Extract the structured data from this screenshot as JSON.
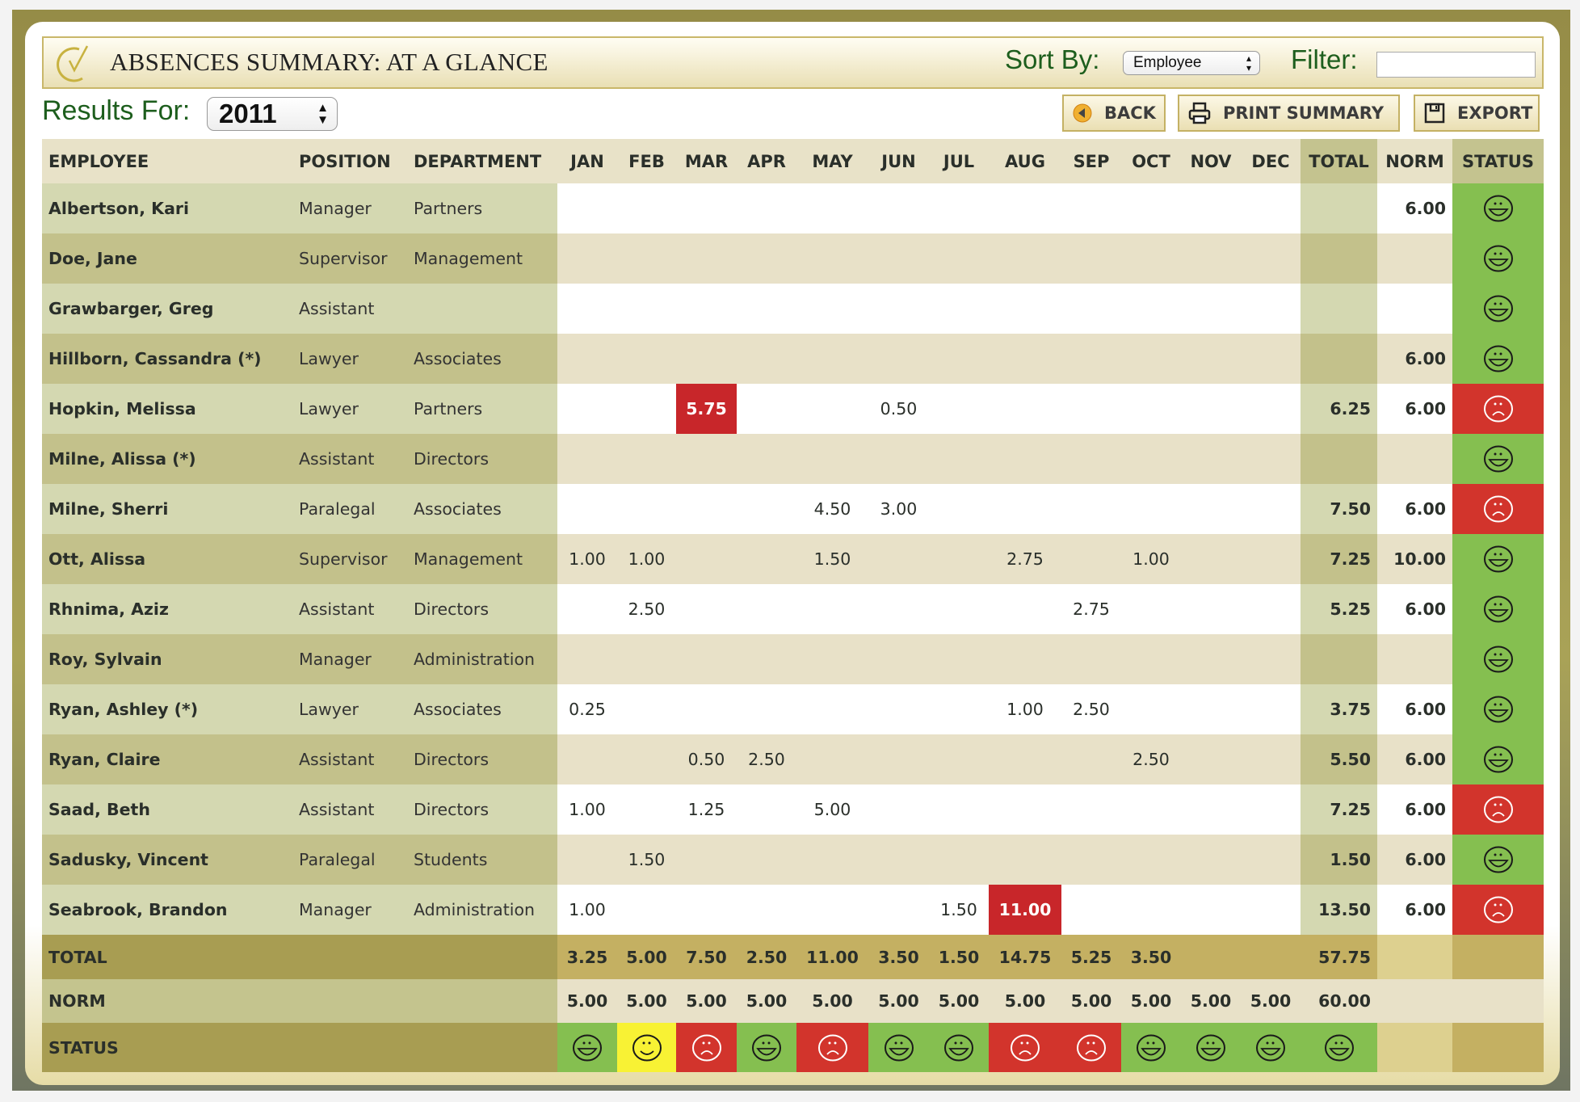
{
  "title": "ABSENCES SUMMARY: AT A GLANCE",
  "sort": {
    "label": "Sort By:",
    "value": "Employee"
  },
  "filter": {
    "label": "Filter:",
    "value": ""
  },
  "results": {
    "label": "Results For:",
    "year": "2011"
  },
  "buttons": {
    "back": "BACK",
    "print": "PRINT SUMMARY",
    "export": "EXPORT"
  },
  "colors": {
    "good": "#85bf50",
    "bad": "#d2342c",
    "neutral": "#f8f234",
    "alert": "#c8262a"
  },
  "columns": [
    "EMPLOYEE",
    "POSITION",
    "DEPARTMENT",
    "JAN",
    "FEB",
    "MAR",
    "APR",
    "MAY",
    "JUN",
    "JUL",
    "AUG",
    "SEP",
    "OCT",
    "NOV",
    "DEC",
    "TOTAL",
    "NORM",
    "STATUS"
  ],
  "rows": [
    {
      "employee": "Albertson, Kari",
      "position": "Manager",
      "department": "Partners",
      "months": [
        "",
        "",
        "",
        "",
        "",
        "",
        "",
        "",
        "",
        "",
        "",
        ""
      ],
      "alerts": [],
      "total": "",
      "norm": "6.00",
      "status": "good"
    },
    {
      "employee": "Doe, Jane",
      "position": "Supervisor",
      "department": "Management",
      "months": [
        "",
        "",
        "",
        "",
        "",
        "",
        "",
        "",
        "",
        "",
        "",
        ""
      ],
      "alerts": [],
      "total": "",
      "norm": "",
      "status": "good"
    },
    {
      "employee": "Grawbarger, Greg",
      "position": "Assistant",
      "department": "",
      "months": [
        "",
        "",
        "",
        "",
        "",
        "",
        "",
        "",
        "",
        "",
        "",
        ""
      ],
      "alerts": [],
      "total": "",
      "norm": "",
      "status": "good"
    },
    {
      "employee": "Hillborn, Cassandra (*)",
      "position": "Lawyer",
      "department": "Associates",
      "months": [
        "",
        "",
        "",
        "",
        "",
        "",
        "",
        "",
        "",
        "",
        "",
        ""
      ],
      "alerts": [],
      "total": "",
      "norm": "6.00",
      "status": "good"
    },
    {
      "employee": "Hopkin, Melissa",
      "position": "Lawyer",
      "department": "Partners",
      "months": [
        "",
        "",
        "5.75",
        "",
        "",
        "0.50",
        "",
        "",
        "",
        "",
        "",
        ""
      ],
      "alerts": [
        2
      ],
      "total": "6.25",
      "norm": "6.00",
      "status": "bad"
    },
    {
      "employee": "Milne, Alissa (*)",
      "position": "Assistant",
      "department": "Directors",
      "months": [
        "",
        "",
        "",
        "",
        "",
        "",
        "",
        "",
        "",
        "",
        "",
        ""
      ],
      "alerts": [],
      "total": "",
      "norm": "",
      "status": "good"
    },
    {
      "employee": "Milne, Sherri",
      "position": "Paralegal",
      "department": "Associates",
      "months": [
        "",
        "",
        "",
        "",
        "4.50",
        "3.00",
        "",
        "",
        "",
        "",
        "",
        ""
      ],
      "alerts": [],
      "total": "7.50",
      "norm": "6.00",
      "status": "bad"
    },
    {
      "employee": "Ott, Alissa",
      "position": "Supervisor",
      "department": "Management",
      "months": [
        "1.00",
        "1.00",
        "",
        "",
        "1.50",
        "",
        "",
        "2.75",
        "",
        "1.00",
        "",
        ""
      ],
      "alerts": [],
      "total": "7.25",
      "norm": "10.00",
      "status": "good"
    },
    {
      "employee": "Rhnima, Aziz",
      "position": "Assistant",
      "department": "Directors",
      "months": [
        "",
        "2.50",
        "",
        "",
        "",
        "",
        "",
        "",
        "2.75",
        "",
        "",
        ""
      ],
      "alerts": [],
      "total": "5.25",
      "norm": "6.00",
      "status": "good"
    },
    {
      "employee": "Roy, Sylvain",
      "position": "Manager",
      "department": "Administration",
      "months": [
        "",
        "",
        "",
        "",
        "",
        "",
        "",
        "",
        "",
        "",
        "",
        ""
      ],
      "alerts": [],
      "total": "",
      "norm": "",
      "status": "good"
    },
    {
      "employee": "Ryan, Ashley (*)",
      "position": "Lawyer",
      "department": "Associates",
      "months": [
        "0.25",
        "",
        "",
        "",
        "",
        "",
        "",
        "1.00",
        "2.50",
        "",
        "",
        ""
      ],
      "alerts": [],
      "total": "3.75",
      "norm": "6.00",
      "status": "good"
    },
    {
      "employee": "Ryan, Claire",
      "position": "Assistant",
      "department": "Directors",
      "months": [
        "",
        "",
        "0.50",
        "2.50",
        "",
        "",
        "",
        "",
        "",
        "2.50",
        "",
        ""
      ],
      "alerts": [],
      "total": "5.50",
      "norm": "6.00",
      "status": "good"
    },
    {
      "employee": "Saad, Beth",
      "position": "Assistant",
      "department": "Directors",
      "months": [
        "1.00",
        "",
        "1.25",
        "",
        "5.00",
        "",
        "",
        "",
        "",
        "",
        "",
        ""
      ],
      "alerts": [],
      "total": "7.25",
      "norm": "6.00",
      "status": "bad"
    },
    {
      "employee": "Sadusky, Vincent",
      "position": "Paralegal",
      "department": "Students",
      "months": [
        "",
        "1.50",
        "",
        "",
        "",
        "",
        "",
        "",
        "",
        "",
        "",
        ""
      ],
      "alerts": [],
      "total": "1.50",
      "norm": "6.00",
      "status": "good"
    },
    {
      "employee": "Seabrook, Brandon",
      "position": "Manager",
      "department": "Administration",
      "months": [
        "1.00",
        "",
        "",
        "",
        "",
        "",
        "1.50",
        "11.00",
        "",
        "",
        "",
        ""
      ],
      "alerts": [
        7
      ],
      "total": "13.50",
      "norm": "6.00",
      "status": "bad"
    }
  ],
  "totals": {
    "label": "TOTAL",
    "months": [
      "3.25",
      "5.00",
      "7.50",
      "2.50",
      "11.00",
      "3.50",
      "1.50",
      "14.75",
      "5.25",
      "3.50",
      "",
      ""
    ],
    "total": "57.75"
  },
  "norms": {
    "label": "NORM",
    "months": [
      "5.00",
      "5.00",
      "5.00",
      "5.00",
      "5.00",
      "5.00",
      "5.00",
      "5.00",
      "5.00",
      "5.00",
      "5.00",
      "5.00"
    ],
    "total": "60.00"
  },
  "statuses": {
    "label": "STATUS",
    "months": [
      "good",
      "neutral",
      "bad",
      "good",
      "bad",
      "good",
      "good",
      "bad",
      "bad",
      "good",
      "good",
      "good"
    ],
    "total": "good"
  }
}
